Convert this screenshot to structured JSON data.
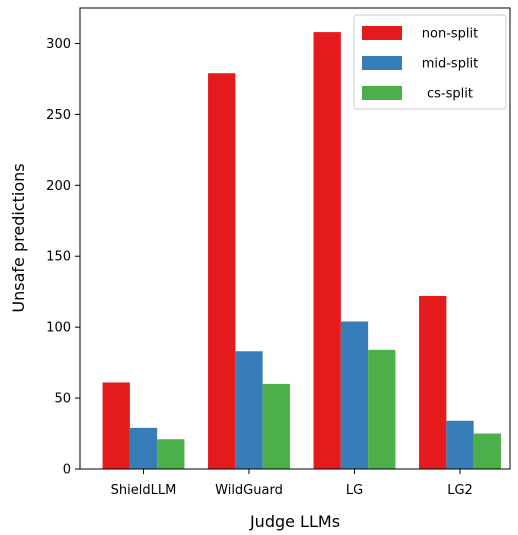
{
  "chart_data": {
    "type": "bar",
    "xlabel": "Judge LLMs",
    "ylabel": "Unsafe predictions",
    "categories": [
      "ShieldLLM",
      "WildGuard",
      "LG",
      "LG2"
    ],
    "series": [
      {
        "name": "non-split",
        "color": "#e41a1c",
        "values": [
          61,
          279,
          308,
          122
        ]
      },
      {
        "name": "mid-split",
        "color": "#377eb8",
        "values": [
          29,
          83,
          104,
          34
        ]
      },
      {
        "name": "cs-split",
        "color": "#4daf4a",
        "values": [
          21,
          60,
          84,
          25
        ]
      }
    ],
    "ylim": [
      0,
      325
    ],
    "yticks": [
      0,
      50,
      100,
      150,
      200,
      250,
      300
    ],
    "grid": false,
    "legend_position": "top-right"
  }
}
